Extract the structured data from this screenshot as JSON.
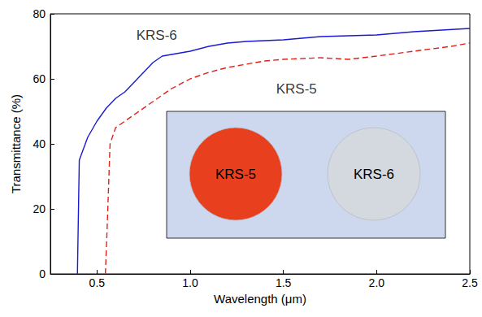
{
  "chart_data": {
    "type": "line",
    "x_label": "Wavelength (μm)",
    "y_label": "Transmittance (%)",
    "xlim": [
      0.25,
      2.5
    ],
    "xticks": [
      {
        "value": 0.5,
        "label": "0.5"
      },
      {
        "value": 1.0,
        "label": "1.0"
      },
      {
        "value": 1.5,
        "label": "1.5"
      },
      {
        "value": 2.0,
        "label": "2.0"
      },
      {
        "value": 2.5,
        "label": "2.5"
      }
    ],
    "ylim": [
      0,
      80
    ],
    "yticks": [
      0,
      20,
      40,
      60,
      80
    ],
    "grid": false,
    "series": [
      {
        "name": "KRS-6",
        "color": "#1a1ad0",
        "line_style": "solid",
        "x": [
          0.395,
          0.405,
          0.45,
          0.5,
          0.55,
          0.6,
          0.65,
          0.7,
          0.75,
          0.8,
          0.85,
          0.9,
          1.0,
          1.1,
          1.2,
          1.3,
          1.5,
          1.7,
          2.0,
          2.2,
          2.5
        ],
        "values": [
          0,
          35,
          42,
          47,
          51,
          54,
          56,
          59,
          62,
          65,
          67,
          67.5,
          68.5,
          70,
          71,
          71.5,
          72,
          73,
          73.5,
          74.5,
          75.5
        ]
      },
      {
        "name": "KRS-5",
        "color": "#e0201a",
        "line_style": "dashed",
        "x": [
          0.545,
          0.555,
          0.57,
          0.6,
          0.65,
          0.7,
          0.8,
          0.9,
          1.0,
          1.1,
          1.2,
          1.3,
          1.4,
          1.5,
          1.7,
          1.85,
          2.0,
          2.2,
          2.4,
          2.5
        ],
        "values": [
          0,
          15,
          40,
          45,
          47,
          49,
          53,
          57,
          60,
          62,
          63.5,
          64.5,
          65.5,
          66,
          66.5,
          66,
          67,
          68.5,
          70,
          71
        ]
      }
    ],
    "annotations": [
      {
        "text": "KRS-6",
        "x": 0.82,
        "y": 73.5
      },
      {
        "text": "KRS-5",
        "x": 1.57,
        "y": 57
      }
    ],
    "inset_labels": [
      "KRS-5",
      "KRS-6"
    ]
  }
}
